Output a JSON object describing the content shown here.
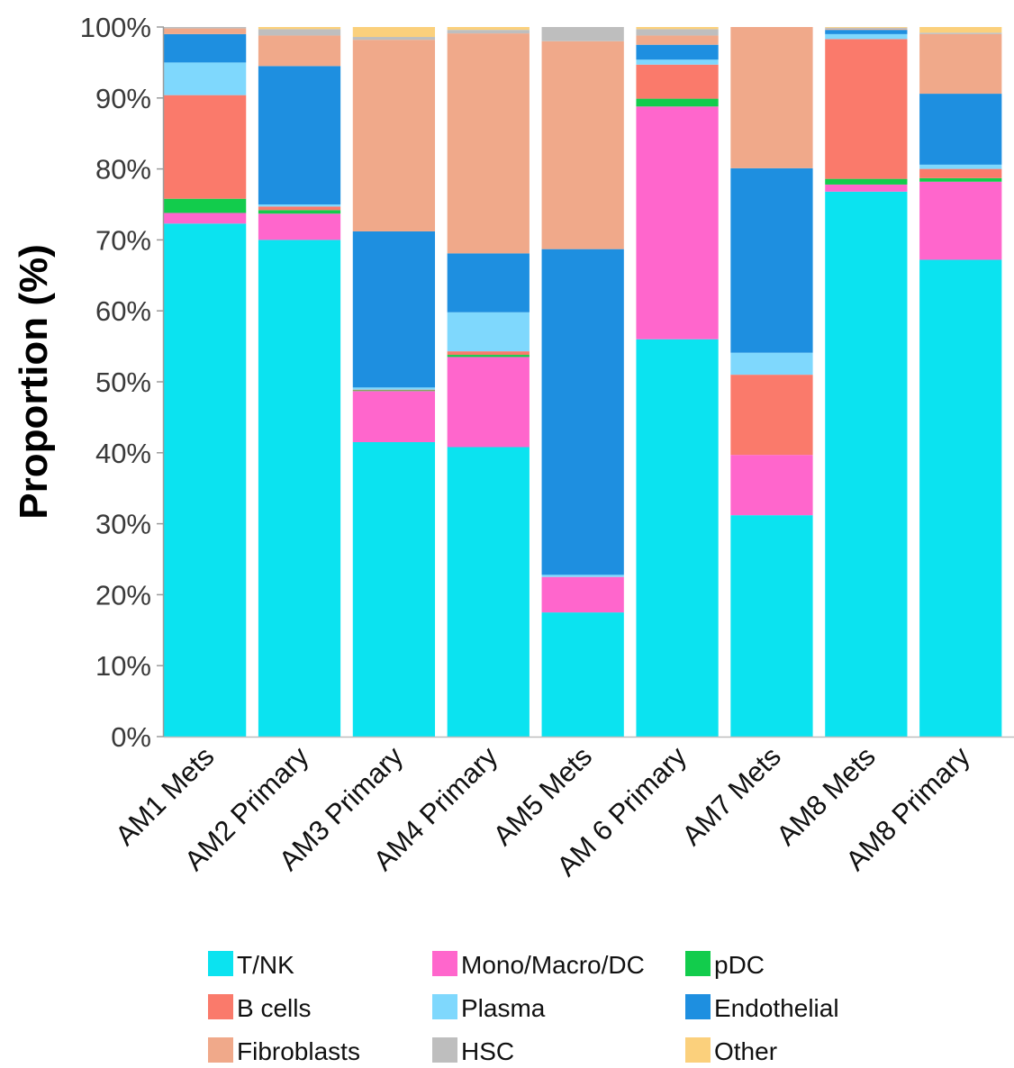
{
  "chart_data": {
    "type": "bar",
    "stacked": true,
    "title": "",
    "xlabel": "",
    "ylabel": "Proportion (%)",
    "ylim": [
      0,
      100
    ],
    "y_ticks": [
      "0%",
      "10%",
      "20%",
      "30%",
      "40%",
      "50%",
      "60%",
      "70%",
      "80%",
      "90%",
      "100%"
    ],
    "grid": false,
    "legend_position": "bottom",
    "categories": [
      "AM1 Mets",
      "AM2 Primary",
      "AM3 Primary",
      "AM4 Primary",
      "AM5 Mets",
      "AM 6 Primary",
      "AM7 Mets",
      "AM8 Mets",
      "AM8 Primary"
    ],
    "series": [
      {
        "name": "T/NK",
        "color": "#0BE3F0",
        "values": [
          72.3,
          70.0,
          41.5,
          40.8,
          17.5,
          56.0,
          31.2,
          76.8,
          67.2
        ]
      },
      {
        "name": "Mono/Macro/DC",
        "color": "#FF66CC",
        "values": [
          1.5,
          3.7,
          7.2,
          12.7,
          5.0,
          32.8,
          8.5,
          1.0,
          11.0
        ]
      },
      {
        "name": "pDC",
        "color": "#12CC4C",
        "values": [
          2.0,
          0.5,
          0.1,
          0.3,
          0.0,
          1.1,
          0.0,
          0.8,
          0.5
        ]
      },
      {
        "name": "B cells",
        "color": "#FA7A6B",
        "values": [
          14.6,
          0.5,
          0.1,
          0.5,
          0.0,
          4.8,
          11.3,
          19.7,
          1.3
        ]
      },
      {
        "name": "Plasma",
        "color": "#7FD8FD",
        "values": [
          4.6,
          0.3,
          0.3,
          5.5,
          0.3,
          0.7,
          3.1,
          0.7,
          0.6
        ]
      },
      {
        "name": "Endothelial",
        "color": "#1E8FE0",
        "values": [
          4.0,
          19.5,
          22.0,
          8.3,
          45.9,
          2.1,
          26.0,
          0.6,
          10.0
        ]
      },
      {
        "name": "Fibroblasts",
        "color": "#F0A98A",
        "values": [
          0.8,
          4.3,
          27.0,
          31.0,
          29.3,
          1.3,
          19.9,
          0.1,
          8.4
        ]
      },
      {
        "name": "HSC",
        "color": "#BEBEBE",
        "values": [
          0.2,
          0.9,
          0.4,
          0.5,
          2.0,
          0.9,
          0.0,
          0.2,
          0.2
        ]
      },
      {
        "name": "Other",
        "color": "#FBD07C",
        "values": [
          0.0,
          0.3,
          1.4,
          0.4,
          0.0,
          0.3,
          0.0,
          0.1,
          0.8
        ]
      }
    ]
  }
}
